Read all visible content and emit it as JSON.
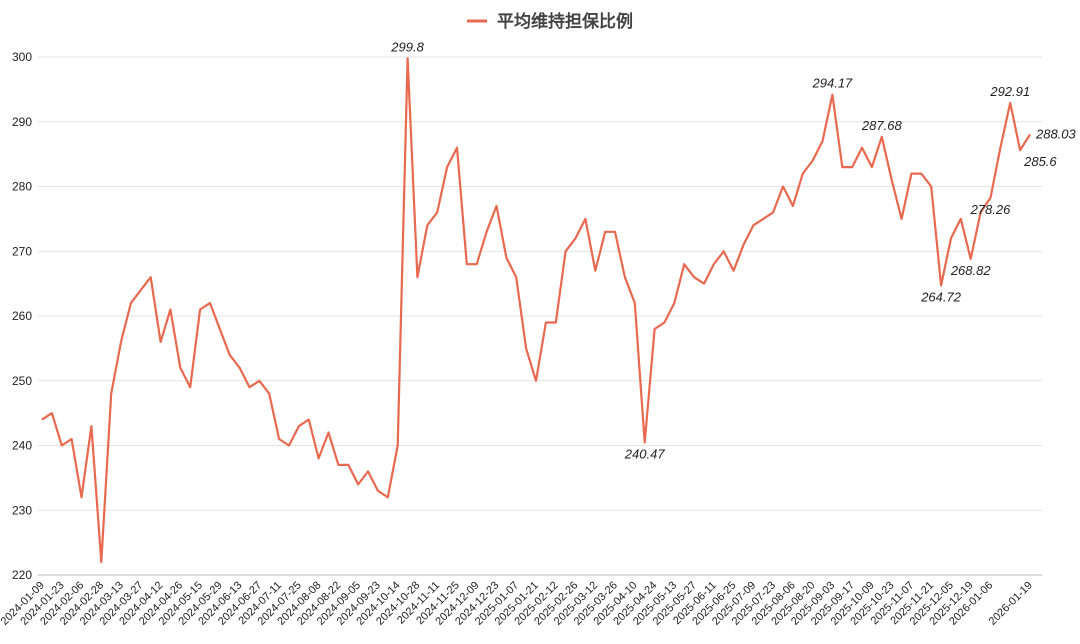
{
  "chart_data": {
    "type": "line",
    "series": [
      {
        "name": "平均维持担保比例",
        "color": "#e8694f",
        "values": [
          244,
          245,
          240,
          241,
          232,
          243,
          222,
          248,
          256,
          262,
          264,
          266,
          256,
          261,
          252,
          249,
          261,
          262,
          258,
          254,
          252,
          249,
          250,
          248,
          241,
          240,
          243,
          244,
          238,
          242,
          237,
          237,
          234,
          236,
          233,
          232,
          240,
          299.8,
          266,
          274,
          276,
          283,
          286,
          268,
          268,
          273,
          277,
          269,
          266,
          255,
          250,
          259,
          259,
          270,
          272,
          275,
          267,
          273,
          273,
          266,
          262,
          240.47,
          258,
          259,
          262,
          268,
          266,
          265,
          268,
          270,
          267,
          271,
          274,
          275,
          276,
          280,
          277,
          282,
          284,
          287,
          294.17,
          283,
          283,
          286,
          283,
          287.68,
          281,
          275,
          282,
          282,
          280,
          264.72,
          272,
          275,
          268.82,
          276,
          278.26,
          286,
          292.91,
          285.6,
          288.03
        ],
        "value_labels": [
          null,
          null,
          null,
          null,
          null,
          null,
          null,
          null,
          null,
          null,
          null,
          null,
          null,
          null,
          null,
          null,
          null,
          null,
          null,
          null,
          null,
          null,
          null,
          null,
          null,
          null,
          null,
          null,
          null,
          null,
          null,
          null,
          null,
          null,
          null,
          null,
          null,
          "299.8",
          null,
          null,
          null,
          null,
          null,
          null,
          null,
          null,
          null,
          null,
          null,
          null,
          null,
          null,
          null,
          null,
          null,
          null,
          null,
          null,
          null,
          null,
          null,
          "240.47",
          null,
          null,
          null,
          null,
          null,
          null,
          null,
          null,
          null,
          null,
          null,
          null,
          null,
          null,
          null,
          null,
          null,
          null,
          "294.17",
          null,
          null,
          null,
          null,
          "287.68",
          null,
          null,
          null,
          null,
          null,
          "264.72",
          null,
          null,
          "268.82",
          null,
          "278.26",
          null,
          "292.91",
          "285.6",
          "288.03"
        ]
      }
    ],
    "categories": [
      "2024-01-09",
      null,
      "2024-01-23",
      null,
      "2024-02-06",
      null,
      "2024-02-28",
      null,
      "2024-03-13",
      null,
      "2024-03-27",
      null,
      "2024-04-12",
      null,
      "2024-04-26",
      null,
      "2024-05-15",
      null,
      "2024-05-29",
      null,
      "2024-06-13",
      null,
      "2024-06-27",
      null,
      "2024-07-11",
      null,
      "2024-07-25",
      null,
      "2024-08-08",
      null,
      "2024-08-22",
      null,
      "2024-09-05",
      null,
      "2024-09-23",
      null,
      "2024-10-14",
      null,
      "2024-10-28",
      null,
      "2024-11-11",
      null,
      "2024-11-25",
      null,
      "2024-12-09",
      null,
      "2024-12-23",
      null,
      "2025-01-07",
      null,
      "2025-01-21",
      null,
      "2025-02-12",
      null,
      "2025-02-26",
      null,
      "2025-03-12",
      null,
      "2025-03-26",
      null,
      "2025-04-10",
      null,
      "2025-04-24",
      null,
      "2025-05-13",
      null,
      "2025-05-27",
      null,
      "2025-06-11",
      null,
      "2025-06-25",
      null,
      "2025-07-09",
      null,
      "2025-07-23",
      null,
      "2025-08-06",
      null,
      "2025-08-20",
      null,
      "2025-09-03",
      null,
      "2025-09-17",
      null,
      "2025-10-09",
      null,
      "2025-10-23",
      null,
      "2025-11-07",
      null,
      "2025-11-21",
      null,
      "2025-12-05",
      null,
      "2025-12-19",
      null,
      "2026-01-06",
      null,
      null,
      null,
      "2026-01-19"
    ],
    "ylim": [
      220,
      300
    ],
    "yticks": [
      220,
      230,
      240,
      250,
      260,
      270,
      280,
      290,
      300
    ],
    "grid": true,
    "legend": "top"
  }
}
